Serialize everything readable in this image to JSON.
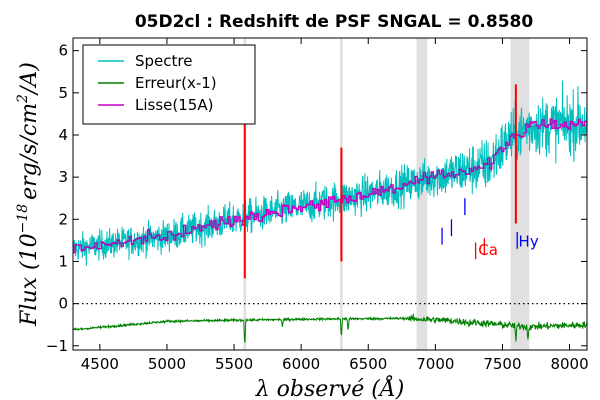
{
  "chart_data": {
    "type": "line",
    "title": "05D2cl : Redshift de PSF SNGAL = 0.8580",
    "xlabel": "λ observé (Å)",
    "ylabel_parts": [
      "Flux (10",
      "−18",
      "erg/s/cm",
      "2",
      "/A)"
    ],
    "xlim": [
      4300,
      8130
    ],
    "ylim": [
      -1.1,
      6.3
    ],
    "xticks": [
      4500,
      5000,
      5500,
      6000,
      6500,
      7000,
      7500,
      8000
    ],
    "yticks": [
      -1,
      0,
      1,
      2,
      3,
      4,
      5,
      6
    ],
    "grid": false,
    "legend_placement": "top-left",
    "shaded_bands": [
      [
        5570,
        5590
      ],
      [
        6290,
        6310
      ],
      [
        6860,
        6940
      ],
      [
        7560,
        7700
      ]
    ],
    "zero_line": {
      "y": 0,
      "style": "dotted"
    },
    "series": [
      {
        "name": "Spectre",
        "color": "#00bfbf",
        "trend": {
          "x": [
            4300,
            5000,
            5500,
            6000,
            6500,
            7000,
            7400,
            7550,
            7700,
            8130
          ],
          "y": [
            1.3,
            1.6,
            2.0,
            2.3,
            2.6,
            3.0,
            3.3,
            3.9,
            4.2,
            4.3
          ]
        },
        "noise_sigma": {
          "x": [
            4300,
            7000,
            7300,
            8130
          ],
          "y": [
            0.32,
            0.45,
            0.6,
            0.7
          ]
        },
        "spikes": [
          {
            "x": 5580,
            "y": 4.9
          },
          {
            "x": 6300,
            "y": 3.7
          },
          {
            "x": 7600,
            "y": 5.2
          }
        ]
      },
      {
        "name": "Erreur(x-1)",
        "color": "#008000",
        "trend": {
          "x": [
            4300,
            5000,
            6000,
            6800,
            7100,
            7500,
            7700,
            8130
          ],
          "y": [
            -0.62,
            -0.42,
            -0.37,
            -0.35,
            -0.4,
            -0.5,
            -0.55,
            -0.5
          ]
        },
        "dips": [
          {
            "x": 5580,
            "y": -1.0
          },
          {
            "x": 5860,
            "y": -0.55
          },
          {
            "x": 6300,
            "y": -0.8
          },
          {
            "x": 6350,
            "y": -0.65
          },
          {
            "x": 6860,
            "y": -0.4
          },
          {
            "x": 7250,
            "y": -0.55
          },
          {
            "x": 7600,
            "y": -0.9
          },
          {
            "x": 7690,
            "y": -0.85
          }
        ]
      },
      {
        "name": "Lisse(15A)",
        "color": "#bf00bf",
        "trend": {
          "x": [
            4300,
            5000,
            5500,
            6000,
            6500,
            7000,
            7400,
            7550,
            7700,
            8130
          ],
          "y": [
            1.3,
            1.6,
            2.0,
            2.3,
            2.6,
            3.0,
            3.3,
            3.9,
            4.2,
            4.3
          ]
        }
      }
    ],
    "red_spikes": [
      {
        "x": 5580,
        "ylo": 0.6,
        "yhi": 4.9
      },
      {
        "x": 6300,
        "ylo": 1.0,
        "yhi": 3.7
      },
      {
        "x": 7600,
        "ylo": 1.9,
        "yhi": 5.2
      }
    ],
    "annotations": [
      {
        "label": "Ca",
        "color": "#ff0000",
        "text_x": 7320,
        "text_y": 1.15,
        "ticks": [
          {
            "x": 7300,
            "y0": 1.05,
            "y1": 1.45
          },
          {
            "x": 7365,
            "y0": 1.15,
            "y1": 1.55
          }
        ]
      },
      {
        "label": "Hy",
        "color": "#0000ff",
        "text_x": 7620,
        "text_y": 1.35,
        "ticks": [
          {
            "x": 7050,
            "y0": 1.4,
            "y1": 1.8
          },
          {
            "x": 7120,
            "y0": 1.6,
            "y1": 2.0
          },
          {
            "x": 7220,
            "y0": 2.1,
            "y1": 2.5
          },
          {
            "x": 7610,
            "y0": 1.3,
            "y1": 1.7
          }
        ]
      }
    ]
  }
}
